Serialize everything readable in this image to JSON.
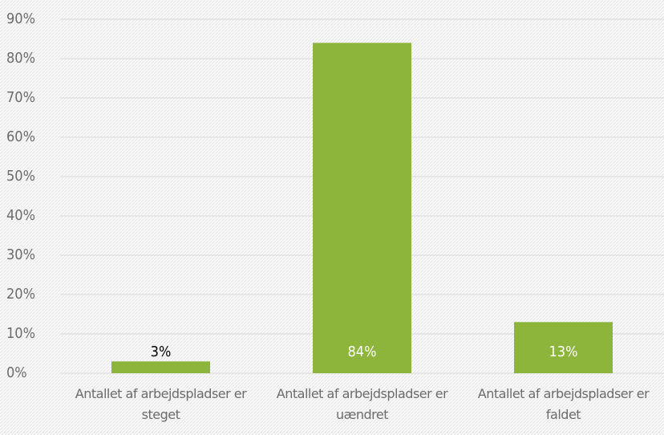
{
  "chart_data": {
    "type": "bar",
    "categories": [
      "Antallet af arbejdspladser er steget",
      "Antallet af arbejdspladser er uændret",
      "Antallet af arbejdspladser er faldet"
    ],
    "values": [
      3,
      84,
      13
    ],
    "value_labels": [
      "3%",
      "84%",
      "13%"
    ],
    "color": "#8db53c",
    "ylim": [
      0,
      90
    ],
    "yticks": [
      {
        "value": 0,
        "label": "0%"
      },
      {
        "value": 10,
        "label": "10%"
      },
      {
        "value": 20,
        "label": "20%"
      },
      {
        "value": 30,
        "label": "30%"
      },
      {
        "value": 40,
        "label": "40%"
      },
      {
        "value": 50,
        "label": "50%"
      },
      {
        "value": 60,
        "label": "60%"
      },
      {
        "value": 70,
        "label": "70%"
      },
      {
        "value": 80,
        "label": "80%"
      },
      {
        "value": 90,
        "label": "90%"
      }
    ],
    "grid": true
  }
}
